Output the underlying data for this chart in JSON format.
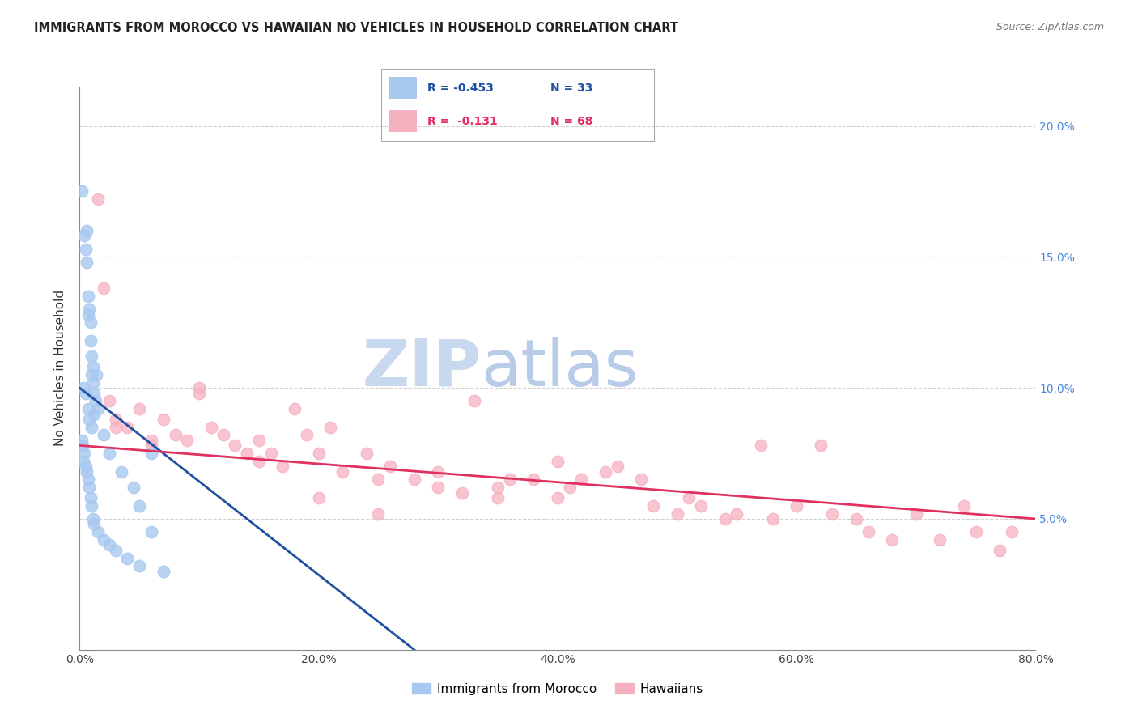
{
  "title": "IMMIGRANTS FROM MOROCCO VS HAWAIIAN NO VEHICLES IN HOUSEHOLD CORRELATION CHART",
  "source": "Source: ZipAtlas.com",
  "ylabel": "No Vehicles in Household",
  "xlabel_vals": [
    0.0,
    20.0,
    40.0,
    60.0,
    80.0
  ],
  "ylabel_vals": [
    5.0,
    10.0,
    15.0,
    20.0
  ],
  "xlim": [
    0.0,
    80.0
  ],
  "ylim": [
    0.0,
    21.5
  ],
  "legend1_label": "Immigrants from Morocco",
  "legend2_label": "Hawaiians",
  "R1": -0.453,
  "N1": 33,
  "R2": -0.131,
  "N2": 68,
  "color_blue": "#a8c8f0",
  "color_pink": "#f5b0c0",
  "line_color_blue": "#2050a0",
  "line_color_pink": "#e03060",
  "watermark_zip": "ZIP",
  "watermark_atlas": "atlas",
  "watermark_color_zip": "#c8d8ee",
  "watermark_color_atlas": "#b8cce8",
  "title_fontsize": 10.5,
  "blue_x": [
    0.2,
    0.4,
    0.5,
    0.6,
    0.6,
    0.7,
    0.7,
    0.8,
    0.9,
    0.9,
    1.0,
    1.0,
    1.1,
    1.1,
    1.2,
    1.3,
    1.4,
    1.5,
    0.3,
    0.5,
    0.7,
    0.8,
    1.0,
    1.2,
    2.0,
    2.5,
    3.5,
    4.5,
    5.0,
    6.0,
    0.15,
    0.25,
    0.35
  ],
  "blue_y": [
    17.5,
    15.8,
    15.3,
    14.8,
    16.0,
    13.5,
    12.8,
    13.0,
    12.5,
    11.8,
    10.5,
    11.2,
    10.8,
    10.2,
    9.8,
    9.5,
    10.5,
    9.2,
    10.0,
    9.8,
    9.2,
    8.8,
    8.5,
    9.0,
    8.2,
    7.5,
    6.8,
    6.2,
    5.5,
    7.5,
    8.0,
    7.8,
    7.5
  ],
  "blue_x_low": [
    0.3,
    0.5,
    0.6,
    0.7,
    0.8,
    0.9,
    1.0,
    1.1,
    1.2,
    1.5,
    2.0,
    2.5,
    3.0,
    4.0,
    5.0,
    6.0,
    7.0
  ],
  "blue_y_low": [
    7.2,
    7.0,
    6.8,
    6.5,
    6.2,
    5.8,
    5.5,
    5.0,
    4.8,
    4.5,
    4.2,
    4.0,
    3.8,
    3.5,
    3.2,
    4.5,
    3.0
  ],
  "pink_x": [
    1.5,
    2.0,
    2.5,
    3.0,
    4.0,
    5.0,
    6.0,
    7.0,
    8.0,
    9.0,
    10.0,
    11.0,
    12.0,
    13.0,
    14.0,
    15.0,
    16.0,
    17.0,
    18.0,
    19.0,
    20.0,
    21.0,
    22.0,
    24.0,
    25.0,
    26.0,
    28.0,
    30.0,
    32.0,
    33.0,
    35.0,
    36.0,
    38.0,
    40.0,
    41.0,
    42.0,
    44.0,
    45.0,
    47.0,
    48.0,
    50.0,
    51.0,
    52.0,
    54.0,
    55.0,
    57.0,
    58.0,
    60.0,
    62.0,
    63.0,
    65.0,
    66.0,
    68.0,
    70.0,
    72.0,
    74.0,
    75.0,
    77.0,
    78.0,
    3.0,
    6.0,
    10.0,
    15.0,
    20.0,
    25.0,
    30.0,
    35.0,
    40.0
  ],
  "pink_y": [
    17.2,
    13.8,
    9.5,
    8.8,
    8.5,
    9.2,
    8.0,
    8.8,
    8.2,
    8.0,
    9.8,
    8.5,
    8.2,
    7.8,
    7.5,
    7.2,
    7.5,
    7.0,
    9.2,
    8.2,
    7.5,
    8.5,
    6.8,
    7.5,
    6.5,
    7.0,
    6.5,
    6.2,
    6.0,
    9.5,
    5.8,
    6.5,
    6.5,
    7.2,
    6.2,
    6.5,
    6.8,
    7.0,
    6.5,
    5.5,
    5.2,
    5.8,
    5.5,
    5.0,
    5.2,
    7.8,
    5.0,
    5.5,
    7.8,
    5.2,
    5.0,
    4.5,
    4.2,
    5.2,
    4.2,
    5.5,
    4.5,
    3.8,
    4.5,
    8.5,
    7.8,
    10.0,
    8.0,
    5.8,
    5.2,
    6.8,
    6.2,
    5.8
  ]
}
